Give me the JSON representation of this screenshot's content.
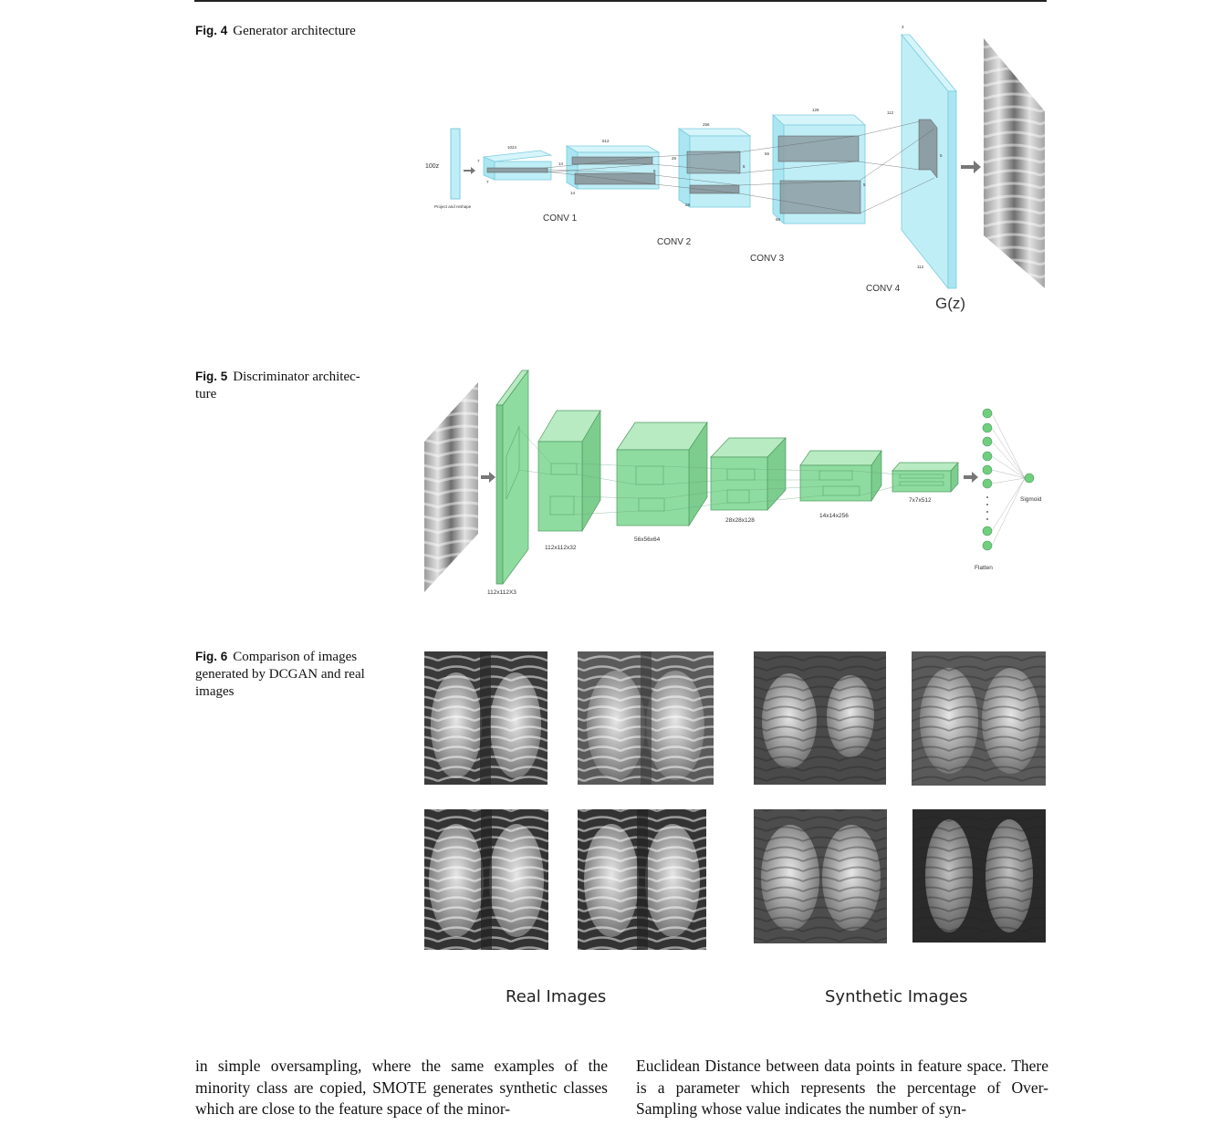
{
  "figures": {
    "fig4": {
      "num": "Fig. 4",
      "caption": "Generator architecture"
    },
    "fig5": {
      "num": "Fig. 5",
      "caption": "Discriminator architec- ture"
    },
    "fig6": {
      "num": "Fig. 6",
      "caption": "Comparison of images generated by DCGAN and real images"
    }
  },
  "generator": {
    "input_label": "100z",
    "project_label": "Project and reshape",
    "conv_labels": [
      "CONV 1",
      "CONV 2",
      "CONV 3",
      "CONV 4"
    ],
    "output_label": "G(z)",
    "dims": {
      "c1_depth": "1024",
      "c1_size": "7",
      "c1_size2": "7",
      "c2_depth": "512",
      "c2_size": "14",
      "c2_size2": "14",
      "c2_k": "5",
      "c3_depth": "256",
      "c3_size": "28",
      "c3_size2": "28",
      "c3_k": "5",
      "c4_depth": "128",
      "c4_size": "56",
      "c4_size2": "56",
      "c4_k": "5",
      "out_depth": "3",
      "out_size": "112",
      "out_size2": "112",
      "out_k": "5"
    }
  },
  "discriminator": {
    "layer_labels": [
      "112x112X3",
      "112x112x32",
      "56x56x64",
      "28x28x128",
      "14x14x256",
      "7x7x512"
    ],
    "flatten_label": "Flatten",
    "sigmoid_label": "Sigmoid"
  },
  "comparison": {
    "real_label": "Real Images",
    "synthetic_label": "Synthetic Images"
  },
  "body": {
    "col1": "in simple oversampling, where the same examples of the minority class are copied, SMOTE generates synthetic classes which are close to the feature space of the minor-",
    "col2": "Euclidean Distance between data points in feature space. There is a parameter which represents the percentage of Over-Sampling whose value indicates the number of syn-"
  },
  "colors": {
    "generator_fill": "#bfeef7",
    "generator_stroke": "#7ccbdc",
    "discriminator_fill": "#8fdca0",
    "discriminator_stroke": "#4f9a60",
    "node_fill": "#6fcf7d"
  }
}
